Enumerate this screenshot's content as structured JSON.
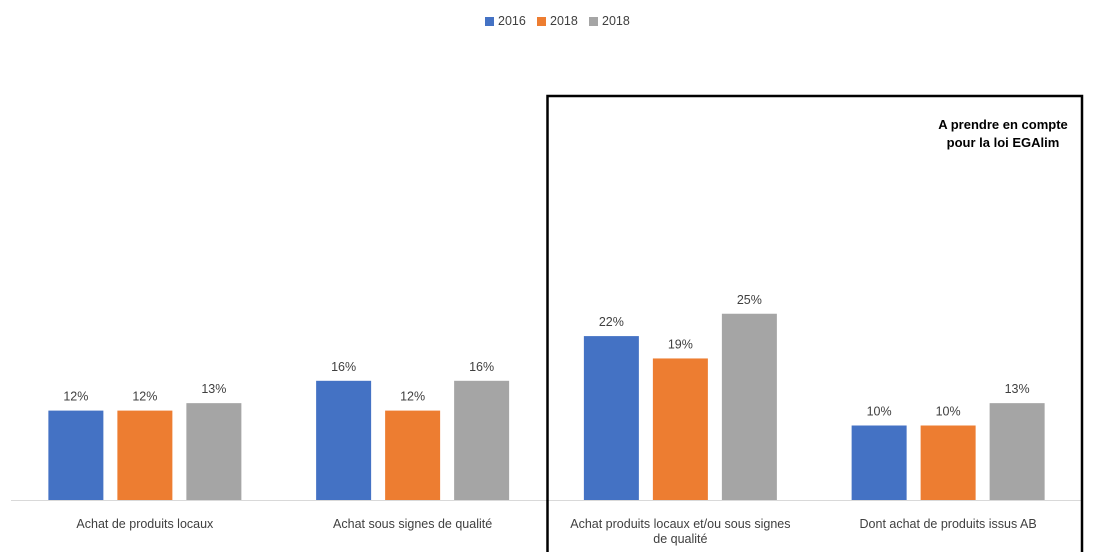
{
  "chart_data": {
    "type": "bar",
    "categories": [
      "Achat de produits locaux",
      "Achat sous signes de qualité",
      "Achat produits locaux et/ou sous signes de qualité",
      "Dont achat de produits issus AB"
    ],
    "series": [
      {
        "name": "2016",
        "color": "#4472C4",
        "values": [
          12,
          16,
          22,
          10
        ]
      },
      {
        "name": "2018",
        "color": "#ED7D31",
        "values": [
          12,
          12,
          19,
          10
        ]
      },
      {
        "name": "2018",
        "color": "#A5A5A5",
        "values": [
          13,
          16,
          25,
          13
        ]
      }
    ],
    "value_suffix": "%",
    "ylim": [
      0,
      28
    ],
    "grid": false,
    "legend": "top-center",
    "highlight_box": {
      "categories": [
        2,
        3
      ],
      "note_lines": [
        "A prendre en compte",
        "pour la loi EGAlim"
      ]
    },
    "title": "",
    "xlabel": "",
    "ylabel": ""
  }
}
